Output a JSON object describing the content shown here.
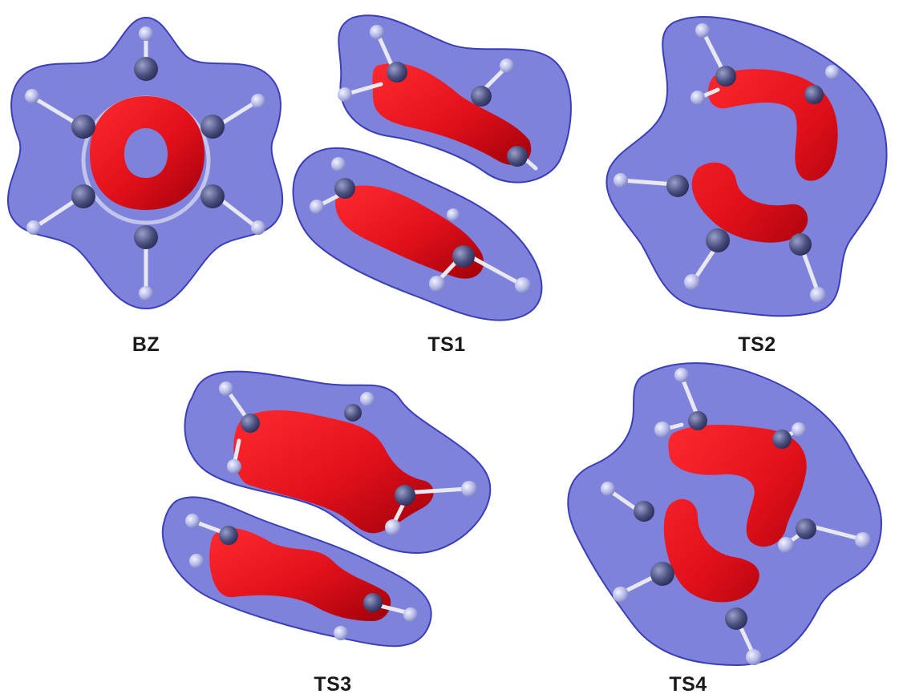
{
  "figure": {
    "panels": [
      {
        "id": "BZ",
        "label": "BZ"
      },
      {
        "id": "TS1",
        "label": "TS1"
      },
      {
        "id": "TS2",
        "label": "TS2"
      },
      {
        "id": "TS3",
        "label": "TS3"
      },
      {
        "id": "TS4",
        "label": "TS4"
      }
    ]
  },
  "colors": {
    "envelope": "#5b5fd0",
    "envelope_edge": "#3a3fb8",
    "density": "#e0101a",
    "density_dark": "#9a0008",
    "atom_carbon": "#4a4e78",
    "atom_hydrogen": "#b9bde6",
    "bond": "#e8e8f0"
  }
}
